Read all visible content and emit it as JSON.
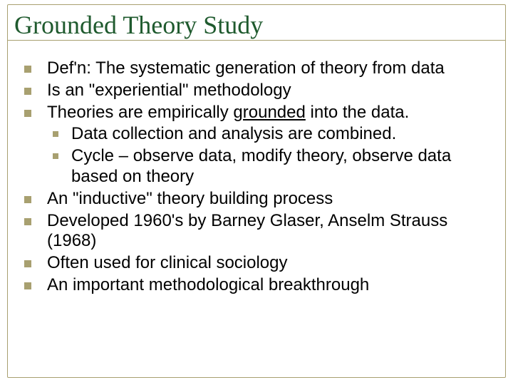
{
  "slide": {
    "title": "Grounded Theory Study",
    "title_color": "#1f5a2e",
    "title_fontsize": 36,
    "border_color": "#a8a070",
    "bullet_color": "#a8a070",
    "body_fontsize": 24,
    "body_color": "#000000",
    "background_color": "#ffffff",
    "bullets": [
      {
        "level": 0,
        "text": "Def'n: The systematic generation of theory from data"
      },
      {
        "level": 0,
        "text": "Is an \"experiential\" methodology"
      },
      {
        "level": 0,
        "text_pre": "Theories are empirically ",
        "text_under": "grounded",
        "text_post": " into the data."
      },
      {
        "level": 1,
        "text": "Data collection and analysis are combined."
      },
      {
        "level": 1,
        "text": "Cycle – observe data, modify theory, observe data based on theory"
      },
      {
        "level": 0,
        "text": "An \"inductive\" theory building process"
      },
      {
        "level": 0,
        "text": "Developed 1960's by Barney Glaser, Anselm Strauss (1968)"
      },
      {
        "level": 0,
        "text": "Often used for clinical sociology"
      },
      {
        "level": 0,
        "text": "An important methodological breakthrough"
      }
    ]
  }
}
